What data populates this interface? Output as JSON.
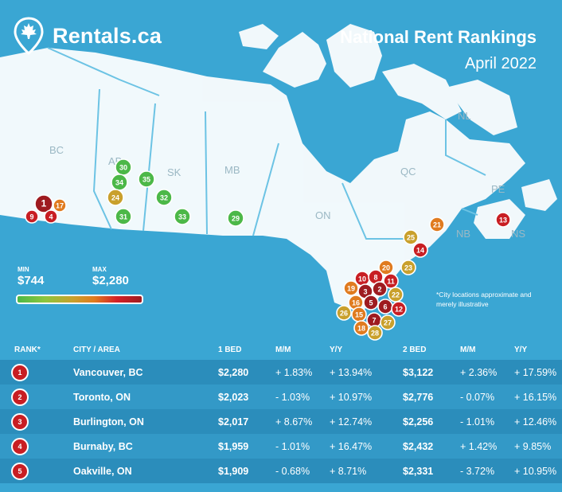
{
  "header": {
    "brand": "Rentals.ca",
    "title": "National Rent Rankings",
    "subtitle": "April 2022"
  },
  "colors": {
    "ocean": "#3aa6d3",
    "land": "#ffffff",
    "border_lines": "#6cc3e4",
    "rank_high": "#c81e23",
    "rank_mid": "#e07b1f",
    "rank_midlow": "#c9a02c",
    "rank_low": "#4cb848"
  },
  "map": {
    "region_labels": [
      "BC",
      "AB",
      "SK",
      "MB",
      "ON",
      "QC",
      "NL",
      "NB",
      "PE",
      "NS"
    ],
    "markers": [
      {
        "rank": "1",
        "color": "#9e1b20"
      },
      {
        "rank": "4",
        "color": "#c81e23"
      },
      {
        "rank": "9",
        "color": "#c81e23"
      },
      {
        "rank": "17",
        "color": "#e07b1f"
      },
      {
        "rank": "30",
        "color": "#4cb848"
      },
      {
        "rank": "34",
        "color": "#4cb848"
      },
      {
        "rank": "24",
        "color": "#c9a02c"
      },
      {
        "rank": "31",
        "color": "#4cb848"
      },
      {
        "rank": "35",
        "color": "#4cb848"
      },
      {
        "rank": "32",
        "color": "#4cb848"
      },
      {
        "rank": "33",
        "color": "#4cb848"
      },
      {
        "rank": "29",
        "color": "#4cb848"
      },
      {
        "rank": "21",
        "color": "#e07b1f"
      },
      {
        "rank": "13",
        "color": "#c81e23"
      },
      {
        "rank": "25",
        "color": "#c9a02c"
      },
      {
        "rank": "14",
        "color": "#c81e23"
      },
      {
        "rank": "23",
        "color": "#c9a02c"
      },
      {
        "rank": "20",
        "color": "#e07b1f"
      },
      {
        "rank": "10",
        "color": "#c81e23"
      },
      {
        "rank": "8",
        "color": "#c81e23"
      },
      {
        "rank": "11",
        "color": "#c81e23"
      },
      {
        "rank": "19",
        "color": "#e07b1f"
      },
      {
        "rank": "3",
        "color": "#9e1b20"
      },
      {
        "rank": "2",
        "color": "#9e1b20"
      },
      {
        "rank": "22",
        "color": "#c9a02c"
      },
      {
        "rank": "16",
        "color": "#e07b1f"
      },
      {
        "rank": "5",
        "color": "#9e1b20"
      },
      {
        "rank": "6",
        "color": "#9e1b20"
      },
      {
        "rank": "12",
        "color": "#c81e23"
      },
      {
        "rank": "26",
        "color": "#c9a02c"
      },
      {
        "rank": "15",
        "color": "#e07b1f"
      },
      {
        "rank": "7",
        "color": "#9e1b20"
      },
      {
        "rank": "27",
        "color": "#c9a02c"
      },
      {
        "rank": "18",
        "color": "#e07b1f"
      },
      {
        "rank": "28",
        "color": "#c9a02c"
      }
    ]
  },
  "legend": {
    "min_label": "MIN",
    "min_value": "$744",
    "max_label": "MAX",
    "max_value": "$2,280"
  },
  "note": "*City locations approximate and merely illustrative",
  "table": {
    "headers": [
      "RANK*",
      "CITY / AREA",
      "1 BED",
      "M/M",
      "Y/Y",
      "2 BED",
      "M/M",
      "Y/Y"
    ],
    "rows": [
      [
        "1",
        "Vancouver, BC",
        "$2,280",
        "+ 1.83%",
        "+ 13.94%",
        "$3,122",
        "+ 2.36%",
        "+ 17.59%"
      ],
      [
        "2",
        "Toronto, ON",
        "$2,023",
        "- 1.03%",
        "+ 10.97%",
        "$2,776",
        "- 0.07%",
        "+ 16.15%"
      ],
      [
        "3",
        "Burlington, ON",
        "$2,017",
        "+ 8.67%",
        "+ 12.74%",
        "$2,256",
        "- 1.01%",
        "+ 12.46%"
      ],
      [
        "4",
        "Burnaby, BC",
        "$1,959",
        "- 1.01%",
        "+ 16.47%",
        "$2,432",
        "+ 1.42%",
        "+ 9.85%"
      ],
      [
        "5",
        "Oakville, ON",
        "$1,909",
        "- 0.68%",
        "+ 8.71%",
        "$2,331",
        "- 3.72%",
        "+ 10.95%"
      ]
    ]
  }
}
